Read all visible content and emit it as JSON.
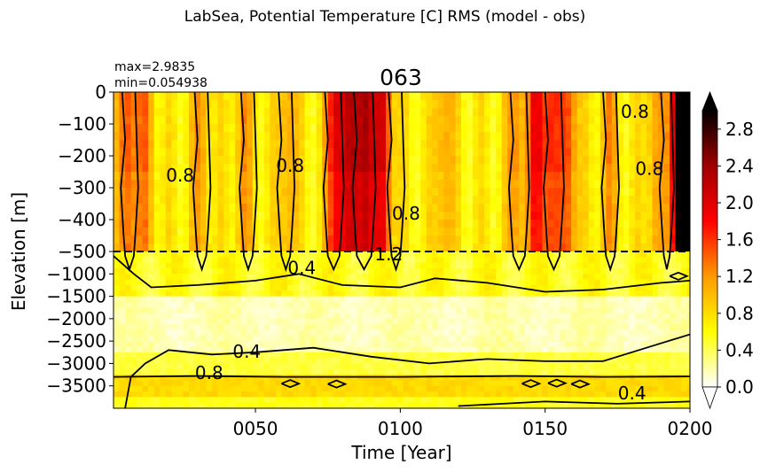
{
  "chart_data": {
    "type": "heatmap",
    "suptitle": "LabSea, Potential Temperature [C] RMS (model - obs)",
    "title": "063",
    "stats": {
      "max_label": "max=2.9835",
      "min_label": "min=0.054938"
    },
    "xlabel": "Time [Year]",
    "ylabel": "Elevation [m]",
    "x_ticks": [
      "0050",
      "0100",
      "0150",
      "0200"
    ],
    "x_tick_values": [
      50,
      100,
      150,
      200
    ],
    "xlim": [
      1,
      200
    ],
    "y_ticks_upper": [
      "0",
      "−100",
      "−200",
      "−300",
      "−400",
      "−500"
    ],
    "y_tick_values_upper": [
      0,
      -100,
      -200,
      -300,
      -400,
      -500
    ],
    "y_ticks_lower": [
      "−1000",
      "−1500",
      "−2000",
      "−2500",
      "−3000",
      "−3500"
    ],
    "y_tick_values_lower": [
      -1000,
      -1500,
      -2000,
      -2500,
      -3000,
      -3500
    ],
    "ylim": [
      -4000,
      0
    ],
    "axis_break_depth": -500,
    "colorbar": {
      "ticks": [
        "0.0",
        "0.4",
        "0.8",
        "1.2",
        "1.6",
        "2.0",
        "2.4",
        "2.8"
      ],
      "tick_values": [
        0.0,
        0.4,
        0.8,
        1.2,
        1.6,
        2.0,
        2.4,
        2.8
      ],
      "range": [
        0.0,
        3.0
      ],
      "extend": "both",
      "cmap": "hot_r",
      "colors": [
        "#ffffff",
        "#ffff00",
        "#ff9a00",
        "#ff0000",
        "#a00000",
        "#000000"
      ]
    },
    "contour_levels": [
      0.4,
      0.8
    ],
    "contour_labels": [
      {
        "text": "0.8",
        "x": 24,
        "z": -280
      },
      {
        "text": "0.8",
        "x": 62,
        "z": -250
      },
      {
        "text": "0.8",
        "x": 102,
        "z": -400
      },
      {
        "text": "0.8",
        "x": 181,
        "z": -80
      },
      {
        "text": "0.8",
        "x": 186,
        "z": -260
      },
      {
        "text": "0.4",
        "x": 66,
        "z": -1000
      },
      {
        "text": "1.2",
        "x": 96,
        "z": -700
      },
      {
        "text": "0.4",
        "x": 47,
        "z": -2870
      },
      {
        "text": "0.8",
        "x": 34,
        "z": -3350
      },
      {
        "text": "0.4",
        "x": 180,
        "z": -3800
      }
    ],
    "grid": false
  }
}
